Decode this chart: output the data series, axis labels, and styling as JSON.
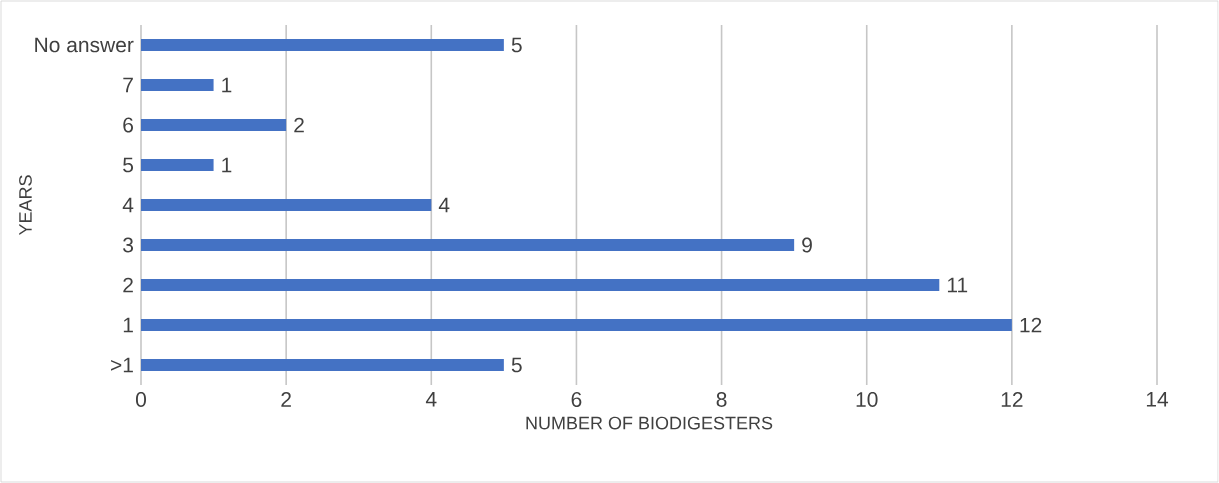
{
  "chart_data": {
    "type": "bar",
    "orientation": "horizontal",
    "xlabel": "NUMBER OF BIODIGESTERS",
    "ylabel": "YEARS",
    "categories": [
      "No answer",
      "7",
      "6",
      "5",
      "4",
      "3",
      "2",
      "1",
      ">1"
    ],
    "values": [
      5,
      1,
      2,
      1,
      4,
      9,
      11,
      12,
      5
    ],
    "color": "#4472c4",
    "xlim": [
      0,
      14
    ],
    "xticks": [
      0,
      2,
      4,
      6,
      8,
      10,
      12,
      14
    ],
    "grid": "x",
    "data_labels": true
  }
}
